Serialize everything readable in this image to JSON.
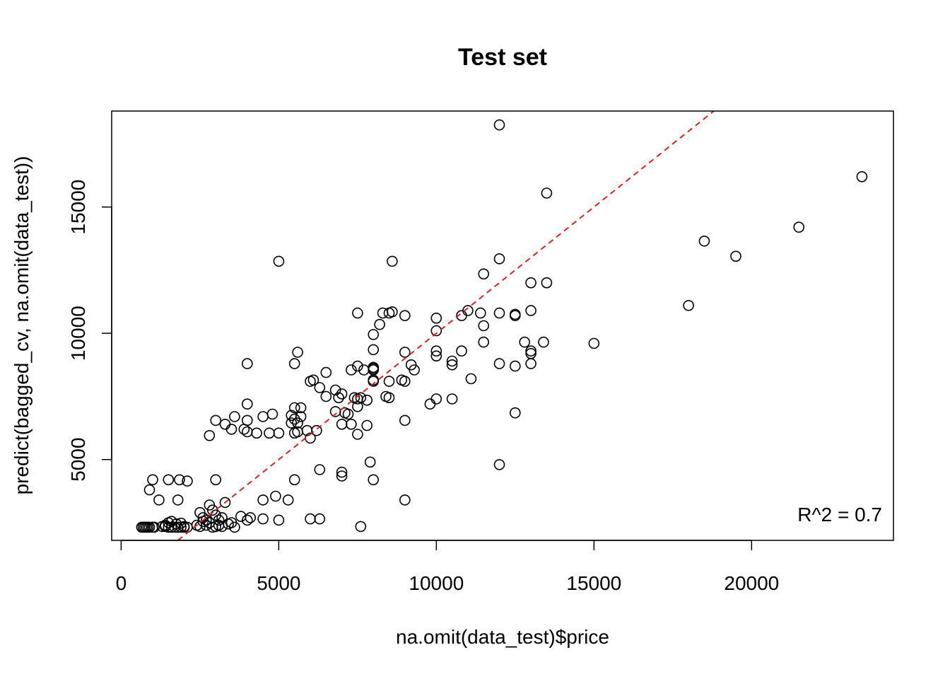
{
  "chart_data": {
    "type": "scatter",
    "title": "Test set",
    "xlabel": "na.omit(data_test)$price",
    "ylabel": "predict(bagged_cv, na.omit(data_test))",
    "xlim": [
      -300,
      24500
    ],
    "ylim": [
      1800,
      18800
    ],
    "x_ticks": [
      0,
      5000,
      10000,
      15000,
      20000
    ],
    "x_tick_labels": [
      "0",
      "5000",
      "10000",
      "15000",
      "20000"
    ],
    "y_ticks": [
      5000,
      10000,
      15000
    ],
    "y_tick_labels": [
      "5000",
      "10000",
      "15000"
    ],
    "grid": false,
    "legend": "none",
    "annotation": "R^2 = 0.7",
    "annotation_position": "bottom-right",
    "reference_line": {
      "type": "identity",
      "slope": 1,
      "intercept": 0,
      "style": "dashed",
      "color": "#e31a1c"
    },
    "point_color": "#000000",
    "points": [
      [
        650,
        2320
      ],
      [
        700,
        2320
      ],
      [
        750,
        2320
      ],
      [
        800,
        2320
      ],
      [
        850,
        2320
      ],
      [
        900,
        2320
      ],
      [
        1000,
        2320
      ],
      [
        1050,
        2320
      ],
      [
        1300,
        2350
      ],
      [
        1400,
        2350
      ],
      [
        1500,
        2320
      ],
      [
        1600,
        2320
      ],
      [
        1700,
        2320
      ],
      [
        1800,
        2320
      ],
      [
        1900,
        2320
      ],
      [
        2000,
        2320
      ],
      [
        2100,
        2320
      ],
      [
        1400,
        2400
      ],
      [
        1500,
        2500
      ],
      [
        1600,
        2550
      ],
      [
        1750,
        2450
      ],
      [
        1900,
        2480
      ],
      [
        2000,
        2350
      ],
      [
        2400,
        2400
      ],
      [
        2500,
        2350
      ],
      [
        2600,
        2550
      ],
      [
        2700,
        2400
      ],
      [
        2800,
        2500
      ],
      [
        2900,
        2320
      ],
      [
        3000,
        2350
      ],
      [
        3100,
        2400
      ],
      [
        3200,
        2350
      ],
      [
        3400,
        2450
      ],
      [
        3600,
        2320
      ],
      [
        2500,
        2900
      ],
      [
        2600,
        2700
      ],
      [
        2700,
        2600
      ],
      [
        2800,
        3200
      ],
      [
        2900,
        3000
      ],
      [
        3000,
        2800
      ],
      [
        3100,
        2600
      ],
      [
        3200,
        2700
      ],
      [
        3300,
        3300
      ],
      [
        3500,
        2500
      ],
      [
        3800,
        2750
      ],
      [
        4000,
        2600
      ],
      [
        4100,
        2700
      ],
      [
        1000,
        4200
      ],
      [
        1500,
        4200
      ],
      [
        1850,
        4200
      ],
      [
        2100,
        4150
      ],
      [
        3000,
        4200
      ],
      [
        900,
        3800
      ],
      [
        1200,
        3400
      ],
      [
        1800,
        3400
      ],
      [
        2800,
        5950
      ],
      [
        3000,
        6550
      ],
      [
        3300,
        6400
      ],
      [
        3500,
        6200
      ],
      [
        3600,
        6700
      ],
      [
        3900,
        6200
      ],
      [
        4000,
        7200
      ],
      [
        4000,
        6100
      ],
      [
        4000,
        6550
      ],
      [
        4300,
        6050
      ],
      [
        4500,
        6700
      ],
      [
        4700,
        6050
      ],
      [
        4800,
        6800
      ],
      [
        5000,
        6050
      ],
      [
        4000,
        8800
      ],
      [
        5000,
        12850
      ],
      [
        5500,
        8800
      ],
      [
        5600,
        9250
      ],
      [
        5500,
        7050
      ],
      [
        5700,
        7050
      ],
      [
        5400,
        6450
      ],
      [
        5500,
        6600
      ],
      [
        5600,
        6450
      ],
      [
        5400,
        6750
      ],
      [
        5700,
        6700
      ],
      [
        5500,
        6050
      ],
      [
        5600,
        6100
      ],
      [
        5900,
        6150
      ],
      [
        6000,
        5850
      ],
      [
        6000,
        8100
      ],
      [
        6100,
        8150
      ],
      [
        6200,
        6150
      ],
      [
        6300,
        7850
      ],
      [
        6500,
        8450
      ],
      [
        6500,
        7500
      ],
      [
        4500,
        3400
      ],
      [
        4500,
        2650
      ],
      [
        4900,
        3550
      ],
      [
        5000,
        2600
      ],
      [
        5300,
        3400
      ],
      [
        5500,
        4200
      ],
      [
        6000,
        2650
      ],
      [
        6300,
        2650
      ],
      [
        6300,
        4600
      ],
      [
        7000,
        4500
      ],
      [
        7000,
        4350
      ],
      [
        7600,
        2350
      ],
      [
        7900,
        4900
      ],
      [
        8000,
        4200
      ],
      [
        9000,
        3400
      ],
      [
        6800,
        7750
      ],
      [
        6800,
        6900
      ],
      [
        6900,
        7450
      ],
      [
        7000,
        7600
      ],
      [
        7000,
        6400
      ],
      [
        7100,
        6850
      ],
      [
        7200,
        6800
      ],
      [
        7300,
        6400
      ],
      [
        7300,
        8550
      ],
      [
        7400,
        7450
      ],
      [
        7500,
        7400
      ],
      [
        7500,
        6000
      ],
      [
        7500,
        7100
      ],
      [
        7500,
        8700
      ],
      [
        7600,
        7450
      ],
      [
        7700,
        8550
      ],
      [
        7800,
        6350
      ],
      [
        7800,
        7350
      ],
      [
        7500,
        10800
      ],
      [
        8000,
        8100
      ],
      [
        8000,
        8150
      ],
      [
        8000,
        8550
      ],
      [
        8000,
        8650
      ],
      [
        8000,
        8600
      ],
      [
        8000,
        9350
      ],
      [
        8000,
        9950
      ],
      [
        8200,
        10350
      ],
      [
        8300,
        10800
      ],
      [
        8400,
        7500
      ],
      [
        8500,
        7450
      ],
      [
        8500,
        8100
      ],
      [
        8500,
        10800
      ],
      [
        8600,
        10850
      ],
      [
        8600,
        12850
      ],
      [
        8900,
        8150
      ],
      [
        9000,
        8100
      ],
      [
        9000,
        9250
      ],
      [
        9000,
        10700
      ],
      [
        9000,
        6550
      ],
      [
        9200,
        8750
      ],
      [
        9300,
        8550
      ],
      [
        9800,
        7200
      ],
      [
        10000,
        7400
      ],
      [
        10000,
        9100
      ],
      [
        10000,
        9300
      ],
      [
        10000,
        10100
      ],
      [
        10000,
        10600
      ],
      [
        10500,
        8750
      ],
      [
        10500,
        8900
      ],
      [
        10500,
        7400
      ],
      [
        10800,
        9300
      ],
      [
        10800,
        10700
      ],
      [
        11000,
        10900
      ],
      [
        11100,
        8200
      ],
      [
        11400,
        10800
      ],
      [
        11500,
        12350
      ],
      [
        11500,
        9650
      ],
      [
        11500,
        10300
      ],
      [
        12000,
        18250
      ],
      [
        12000,
        12950
      ],
      [
        12000,
        10800
      ],
      [
        12000,
        8800
      ],
      [
        12000,
        4800
      ],
      [
        12500,
        10700
      ],
      [
        12500,
        10750
      ],
      [
        12500,
        8700
      ],
      [
        12500,
        6850
      ],
      [
        12800,
        9650
      ],
      [
        13000,
        12000
      ],
      [
        13000,
        10900
      ],
      [
        13000,
        9300
      ],
      [
        13000,
        9200
      ],
      [
        13000,
        8800
      ],
      [
        13400,
        9650
      ],
      [
        13500,
        15550
      ],
      [
        13500,
        12000
      ],
      [
        15000,
        9600
      ],
      [
        18000,
        11100
      ],
      [
        18500,
        13650
      ],
      [
        19500,
        13050
      ],
      [
        21500,
        14200
      ],
      [
        23500,
        16200
      ]
    ]
  }
}
